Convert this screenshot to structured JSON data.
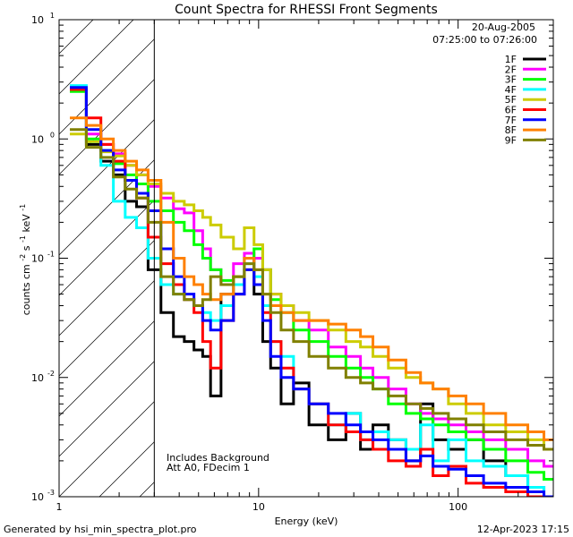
{
  "chart_data": {
    "type": "line",
    "title": "Count Spectra for RHESSI Front Segments",
    "xlabel": "Energy (keV)",
    "ylabel": "counts cm",
    "ylabel_units": {
      "cm_exp": "-2",
      "s": "s",
      "s_exp": "-1",
      "kev": "keV",
      "kev_exp": "-1"
    },
    "xscale": "log",
    "yscale": "log",
    "xlim": [
      1,
      300
    ],
    "ylim": [
      0.001,
      10
    ],
    "x_ticks": [
      {
        "value": 1,
        "label": "1"
      },
      {
        "value": 10,
        "label": "10"
      },
      {
        "value": 100,
        "label": "100"
      }
    ],
    "y_ticks": [
      {
        "value": 0.001,
        "base": "10",
        "exp": "-3"
      },
      {
        "value": 0.01,
        "base": "10",
        "exp": "-2"
      },
      {
        "value": 0.1,
        "base": "10",
        "exp": "-1"
      },
      {
        "value": 1,
        "base": "10",
        "exp": "0"
      },
      {
        "value": 10,
        "base": "10",
        "exp": "1"
      }
    ],
    "hatched_region_x": [
      1,
      3
    ],
    "date_label": "20-Aug-2005",
    "time_range": "07:25:00 to 07:26:00",
    "notes": [
      "Includes Background",
      "Att A0, FDecim 1"
    ],
    "footer_left": "Generated by hsi_min_spectra_plot.pro",
    "footer_right": "12-Apr-2023 17:15",
    "x": [
      1.25,
      1.5,
      1.75,
      2.0,
      2.3,
      2.6,
      3.0,
      3.5,
      4.0,
      4.5,
      5.0,
      5.5,
      6.0,
      7.0,
      8.0,
      9.0,
      10.0,
      11.0,
      12.0,
      14.0,
      16.0,
      20.0,
      25.0,
      30.0,
      35.0,
      40.0,
      50.0,
      60.0,
      70.0,
      80.0,
      100.0,
      120.0,
      150.0,
      200.0,
      250.0,
      290.0
    ],
    "series": [
      {
        "name": "1F",
        "color": "#000000",
        "values": [
          2.6,
          0.9,
          0.65,
          0.5,
          0.3,
          0.27,
          0.08,
          0.035,
          0.022,
          0.02,
          0.017,
          0.015,
          0.007,
          0.05,
          0.06,
          0.1,
          0.05,
          0.02,
          0.012,
          0.006,
          0.009,
          0.004,
          0.003,
          0.005,
          0.0025,
          0.004,
          0.003,
          0.002,
          0.006,
          0.003,
          0.0025,
          0.003,
          0.002,
          0.0015,
          0.0012,
          0.001
        ]
      },
      {
        "name": "2F",
        "color": "#ff00ff",
        "values": [
          2.7,
          1.1,
          0.9,
          0.75,
          0.6,
          0.5,
          0.4,
          0.32,
          0.26,
          0.24,
          0.17,
          0.12,
          0.08,
          0.06,
          0.09,
          0.11,
          0.1,
          0.08,
          0.05,
          0.04,
          0.03,
          0.025,
          0.018,
          0.015,
          0.012,
          0.01,
          0.008,
          0.006,
          0.005,
          0.0045,
          0.004,
          0.0035,
          0.003,
          0.0025,
          0.002,
          0.0018
        ]
      },
      {
        "name": "3F",
        "color": "#00ff00",
        "values": [
          2.5,
          1.0,
          0.8,
          0.62,
          0.5,
          0.42,
          0.3,
          0.25,
          0.2,
          0.17,
          0.13,
          0.1,
          0.08,
          0.065,
          0.07,
          0.1,
          0.12,
          0.08,
          0.045,
          0.035,
          0.025,
          0.02,
          0.015,
          0.012,
          0.01,
          0.008,
          0.006,
          0.005,
          0.0045,
          0.004,
          0.0035,
          0.003,
          0.0025,
          0.002,
          0.0016,
          0.0014
        ]
      },
      {
        "name": "4F",
        "color": "#00ffff",
        "values": [
          2.8,
          0.95,
          0.6,
          0.3,
          0.22,
          0.18,
          0.1,
          0.06,
          0.05,
          0.045,
          0.04,
          0.035,
          0.03,
          0.04,
          0.06,
          0.09,
          0.07,
          0.04,
          0.02,
          0.015,
          0.008,
          0.006,
          0.004,
          0.005,
          0.003,
          0.0035,
          0.003,
          0.0025,
          0.004,
          0.002,
          0.003,
          0.002,
          0.0018,
          0.0015,
          0.0012,
          0.001
        ]
      },
      {
        "name": "5F",
        "color": "#cccc00",
        "values": [
          1.1,
          0.95,
          0.78,
          0.72,
          0.6,
          0.5,
          0.42,
          0.35,
          0.3,
          0.28,
          0.25,
          0.22,
          0.19,
          0.15,
          0.12,
          0.18,
          0.13,
          0.08,
          0.05,
          0.04,
          0.035,
          0.03,
          0.025,
          0.02,
          0.018,
          0.015,
          0.012,
          0.01,
          0.009,
          0.008,
          0.006,
          0.005,
          0.004,
          0.0035,
          0.003,
          0.0025
        ]
      },
      {
        "name": "6F",
        "color": "#ff0000",
        "values": [
          2.6,
          1.5,
          0.9,
          0.65,
          0.45,
          0.32,
          0.15,
          0.09,
          0.06,
          0.045,
          0.035,
          0.02,
          0.012,
          0.03,
          0.05,
          0.08,
          0.06,
          0.035,
          0.02,
          0.012,
          0.008,
          0.006,
          0.004,
          0.0035,
          0.003,
          0.0025,
          0.002,
          0.0018,
          0.0025,
          0.0015,
          0.0018,
          0.0013,
          0.0012,
          0.0011,
          0.001,
          0.001
        ]
      },
      {
        "name": "7F",
        "color": "#0000ff",
        "values": [
          2.7,
          1.2,
          0.8,
          0.55,
          0.45,
          0.35,
          0.25,
          0.12,
          0.07,
          0.05,
          0.04,
          0.03,
          0.025,
          0.03,
          0.05,
          0.08,
          0.06,
          0.03,
          0.015,
          0.01,
          0.008,
          0.006,
          0.005,
          0.004,
          0.0035,
          0.003,
          0.0025,
          0.002,
          0.0022,
          0.0018,
          0.0017,
          0.0015,
          0.0013,
          0.0012,
          0.0011,
          0.001
        ]
      },
      {
        "name": "8F",
        "color": "#ff8000",
        "values": [
          1.5,
          1.3,
          1.0,
          0.8,
          0.65,
          0.55,
          0.45,
          0.2,
          0.1,
          0.07,
          0.06,
          0.05,
          0.045,
          0.05,
          0.07,
          0.1,
          0.08,
          0.05,
          0.04,
          0.035,
          0.03,
          0.03,
          0.028,
          0.025,
          0.022,
          0.018,
          0.014,
          0.011,
          0.009,
          0.008,
          0.007,
          0.006,
          0.005,
          0.004,
          0.0035,
          0.003
        ]
      },
      {
        "name": "9F",
        "color": "#808000",
        "values": [
          1.2,
          0.85,
          0.7,
          0.48,
          0.38,
          0.32,
          0.2,
          0.07,
          0.05,
          0.045,
          0.04,
          0.045,
          0.07,
          0.06,
          0.07,
          0.09,
          0.08,
          0.05,
          0.035,
          0.025,
          0.02,
          0.015,
          0.012,
          0.01,
          0.009,
          0.008,
          0.007,
          0.006,
          0.0055,
          0.005,
          0.0045,
          0.004,
          0.0035,
          0.003,
          0.0027,
          0.0025
        ]
      }
    ]
  }
}
